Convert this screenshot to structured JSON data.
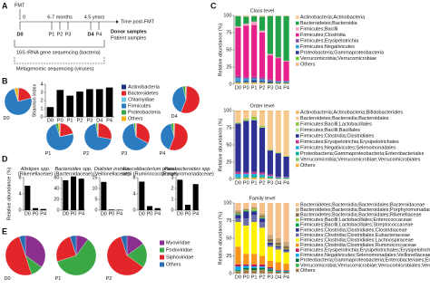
{
  "panel_labels": [
    "A",
    "B",
    "C",
    "D",
    "E"
  ],
  "panel_a": {
    "fmt": "FMT",
    "timepoints": [
      "0",
      "6-7 months",
      "4.5 years"
    ],
    "axis_label": "Time post-FMT",
    "donor_labels": [
      "D0",
      "D4"
    ],
    "patient_labels": [
      "P1",
      "P2",
      "P3",
      "P4"
    ],
    "legend": [
      "Donor samples",
      "Patient samples"
    ],
    "methods": [
      "16S rRNA gene sequencing (bacteria)",
      "Metagenomic sequencing (viruses)"
    ]
  },
  "chart_data": [
    {
      "type": "bar",
      "y_label": "Shannon index",
      "categories": [
        "D0",
        "P0",
        "P1",
        "P2",
        "P3",
        "D4",
        "P4"
      ],
      "values": [
        1.2,
        3.3,
        2.6,
        3.1,
        3.4,
        3.4,
        3.6
      ],
      "color": "#000000",
      "ylim": [
        0,
        4
      ],
      "yticks": [
        0,
        1,
        2,
        3,
        4
      ]
    },
    {
      "type": "pie",
      "categories": [
        "Actinobacteria",
        "Bacteroidetes",
        "Chlamydiae",
        "Firmicutes",
        "Proteobacteria",
        "Others"
      ],
      "colors": [
        "#1b2f7f",
        "#e3262a",
        "#6ac1e6",
        "#2b7bc0",
        "#3aa845",
        "#f7b21b"
      ],
      "pies": [
        {
          "label": "D0",
          "values": [
            1,
            20,
            0,
            74,
            1,
            4
          ]
        },
        {
          "label": "D4",
          "values": [
            1,
            55,
            0,
            40,
            3,
            1
          ]
        },
        {
          "label": "P1",
          "values": [
            1,
            20,
            1,
            73,
            3,
            2
          ]
        },
        {
          "label": "P2",
          "values": [
            1,
            27,
            0,
            69,
            2,
            1
          ]
        },
        {
          "label": "P3",
          "values": [
            1,
            32,
            0,
            64,
            2,
            1
          ]
        },
        {
          "label": "P4",
          "values": [
            1,
            55,
            0,
            40,
            3,
            1
          ]
        }
      ]
    },
    {
      "type": "stacked",
      "title": "Class level",
      "y_label": "Relative abundance (%)",
      "categories": [
        "D0",
        "P0",
        "P1",
        "P2",
        "P3",
        "D4",
        "P4"
      ],
      "ylim": [
        0,
        100
      ],
      "yticks": [
        0,
        25,
        50,
        75,
        100
      ],
      "series": [
        {
          "name": "Actinobacteria;Actinobacteria",
          "color": "#f6c79a",
          "values": [
            1,
            2,
            1,
            2,
            1,
            1,
            1
          ]
        },
        {
          "name": "Bacteroidetes;Bacteroidia",
          "color": "#22a34a",
          "values": [
            15,
            10,
            8,
            20,
            55,
            60,
            65
          ]
        },
        {
          "name": "Firmicutes;Bacilli",
          "color": "#f4a3c0",
          "values": [
            2,
            3,
            5,
            3,
            2,
            1,
            1
          ]
        },
        {
          "name": "Firmicutes;Clostridia",
          "color": "#e7218b",
          "values": [
            70,
            75,
            75,
            65,
            35,
            33,
            28
          ]
        },
        {
          "name": "Firmicutes;Erysipelotrichia",
          "color": "#8b4b9c",
          "values": [
            3,
            2,
            3,
            3,
            2,
            1,
            1
          ]
        },
        {
          "name": "Firmicutes;Negativicutes",
          "color": "#36a0d8",
          "values": [
            5,
            3,
            2,
            2,
            1,
            1,
            1
          ]
        },
        {
          "name": "Proteobacteria;Gammaproteobacteria",
          "color": "#2b3990",
          "values": [
            1,
            2,
            3,
            2,
            2,
            1,
            1
          ]
        },
        {
          "name": "Verrucomicrobia;Verrucomicrobiae",
          "color": "#66cc33",
          "values": [
            1,
            1,
            1,
            1,
            1,
            1,
            1
          ]
        },
        {
          "name": "Others",
          "color": "#f8b88b",
          "values": [
            2,
            2,
            2,
            2,
            1,
            1,
            1
          ]
        }
      ]
    },
    {
      "type": "stacked",
      "title": "Order level",
      "y_label": "Relative abundance (%)",
      "categories": [
        "D0",
        "P0",
        "P1",
        "P2",
        "P3",
        "D4",
        "P4"
      ],
      "ylim": [
        0,
        100
      ],
      "yticks": [
        0,
        25,
        50,
        75,
        100
      ],
      "series": [
        {
          "name": "Actinobacteria;Actinobacteria;Bifidobacteriales",
          "color": "#f1b36b",
          "values": [
            2,
            2,
            1,
            2,
            1,
            1,
            1
          ]
        },
        {
          "name": "Bacteroidetes;Bacteroidia;Bacteroidales",
          "color": "#f6c98e",
          "values": [
            15,
            10,
            8,
            20,
            55,
            60,
            65
          ]
        },
        {
          "name": "Firmicutes;Bacilli;Lactobacillales",
          "color": "#8dc63f",
          "values": [
            1,
            2,
            4,
            2,
            1,
            1,
            1
          ]
        },
        {
          "name": "Firmicutes;Bacilli;Bacillales",
          "color": "#b2df8a",
          "values": [
            1,
            1,
            1,
            1,
            1,
            0,
            0
          ]
        },
        {
          "name": "Firmicutes;Clostridia;Clostridiales",
          "color": "#2e3192",
          "values": [
            70,
            75,
            75,
            65,
            35,
            34,
            29
          ]
        },
        {
          "name": "Firmicutes;Erysipelotrichia;Erysipelotrichales",
          "color": "#c03a8e",
          "values": [
            3,
            2,
            3,
            3,
            2,
            1,
            1
          ]
        },
        {
          "name": "Firmicutes;Negativicutes;Selenomonadales",
          "color": "#29abe2",
          "values": [
            5,
            3,
            2,
            2,
            1,
            1,
            1
          ]
        },
        {
          "name": "Proteobacteria;Gammaproteobacteria;Enterobacteriales",
          "color": "#00a99d",
          "values": [
            1,
            2,
            3,
            2,
            2,
            1,
            1
          ]
        },
        {
          "name": "Verrucomicrobia;Verrucomicrobiae;Verrucomicrobiales",
          "color": "#7cc576",
          "values": [
            1,
            1,
            1,
            1,
            1,
            0,
            0
          ]
        },
        {
          "name": "Others",
          "color": "#fbb040",
          "values": [
            1,
            2,
            2,
            2,
            1,
            1,
            1
          ]
        }
      ]
    },
    {
      "type": "stacked",
      "title": "Family level",
      "y_label": "Relative abundance (%)",
      "categories": [
        "D0",
        "P0",
        "P1",
        "P2",
        "P3",
        "D4",
        "P4"
      ],
      "ylim": [
        0,
        100
      ],
      "yticks": [
        0,
        25,
        50,
        75,
        100
      ],
      "series": [
        {
          "name": "Bacteroidetes;Bacteroidia;Bacteroidales;Bacteroidaceae",
          "color": "#f5c08a",
          "values": [
            10,
            8,
            6,
            15,
            45,
            50,
            55
          ]
        },
        {
          "name": "Bacteroidetes;Bacteroidia;Bacteroidales;Porphyromonadaceae",
          "color": "#c7a77b",
          "values": [
            3,
            1,
            1,
            3,
            6,
            6,
            6
          ]
        },
        {
          "name": "Bacteroidetes;Bacteroidia;Bacteroidales;Rikenellaceae",
          "color": "#8c6d46",
          "values": [
            2,
            1,
            1,
            2,
            4,
            4,
            4
          ]
        },
        {
          "name": "Firmicutes;Bacilli;Lactobacillales;Enterococcaceae",
          "color": "#9ccb3b",
          "values": [
            1,
            1,
            3,
            1,
            1,
            1,
            1
          ]
        },
        {
          "name": "Firmicutes;Bacilli;Lactobacillales;Streptococcaceae",
          "color": "#00a651",
          "values": [
            1,
            1,
            1,
            1,
            0,
            0,
            0
          ]
        },
        {
          "name": "Firmicutes;Clostridia;Clostridiales;Clostridiaceae",
          "color": "#2e3192",
          "values": [
            5,
            10,
            5,
            5,
            3,
            2,
            2
          ]
        },
        {
          "name": "Firmicutes;Clostridia;Clostridiales;Eubacteriaceae",
          "color": "#6d6ea8",
          "values": [
            5,
            10,
            10,
            8,
            3,
            3,
            2
          ]
        },
        {
          "name": "Firmicutes;Clostridia;Clostridiales;Lachnospiraceae",
          "color": "#fff200",
          "values": [
            35,
            40,
            45,
            40,
            20,
            18,
            16
          ]
        },
        {
          "name": "Firmicutes;Clostridia;Clostridiales;Ruminococcaceae",
          "color": "#f7941d",
          "values": [
            25,
            15,
            15,
            12,
            9,
            11,
            9
          ]
        },
        {
          "name": "Firmicutes;Erysipelotrichia;Erysipelotrichales;Erysipelotrichaceae",
          "color": "#c2185b",
          "values": [
            3,
            2,
            3,
            3,
            2,
            1,
            1
          ]
        },
        {
          "name": "Firmicutes;Negativicutes;Selenomonadales;Veillonellaceae",
          "color": "#00aeef",
          "values": [
            5,
            3,
            2,
            2,
            1,
            1,
            1
          ]
        },
        {
          "name": "Proteobacteria;Gammaproteobacteria;Enterobacteriales;Enterobacteriaceae",
          "color": "#006838",
          "values": [
            1,
            2,
            3,
            2,
            2,
            1,
            1
          ]
        },
        {
          "name": "Verrucomicrobia;Verrucomicrobiae;Verrucomicrobiales;Verrucomicrobiaceae",
          "color": "#39b54a",
          "values": [
            1,
            1,
            1,
            1,
            1,
            0,
            0
          ]
        },
        {
          "name": "Others",
          "color": "#a67c52",
          "values": [
            3,
            5,
            4,
            5,
            3,
            2,
            2
          ]
        }
      ]
    },
    {
      "type": "bar",
      "y_label": "Relative abundance (%)",
      "title": [
        "Alistipes spp.",
        "(Rikenellaceae)"
      ],
      "categories": [
        "D0",
        "P0",
        "P4"
      ],
      "values": [
        6,
        0.5,
        0.3
      ],
      "color": "#000000",
      "ylim": [
        0,
        8
      ],
      "yticks": [
        0,
        4,
        8
      ]
    },
    {
      "type": "bar",
      "title": [
        "Bacteroides spp.",
        "(Bacteroidaceae)"
      ],
      "categories": [
        "D0",
        "P0",
        "P4"
      ],
      "values": [
        55,
        62,
        58
      ],
      "color": "#000000",
      "ylim": [
        0,
        60
      ],
      "yticks": [
        0,
        20,
        40,
        60
      ]
    },
    {
      "type": "bar",
      "title": [
        "Dialister invisus",
        "(Veillonellaceae)"
      ],
      "categories": [
        "D0",
        "P0",
        "P4"
      ],
      "values": [
        13,
        0.3,
        0.2
      ],
      "color": "#000000",
      "ylim": [
        0,
        15
      ],
      "yticks": [
        0,
        5,
        10,
        15
      ]
    },
    {
      "type": "bar",
      "title": [
        "Faecalibacterium praus-",
        "nitzii (Ruminococcaceae)"
      ],
      "categories": [
        "D0",
        "P0",
        "P4"
      ],
      "values": [
        7,
        1,
        0.5
      ],
      "color": "#000000",
      "ylim": [
        0,
        8
      ],
      "yticks": [
        0,
        4,
        8
      ]
    },
    {
      "type": "bar",
      "title": [
        "Parabacteroides spp.",
        "(Porphyromonadaceae)"
      ],
      "categories": [
        "D0",
        "P0",
        "P4"
      ],
      "values": [
        2.8,
        0.5,
        2.4
      ],
      "color": "#000000",
      "ylim": [
        0,
        3
      ],
      "yticks": [
        0,
        1,
        2,
        3
      ]
    },
    {
      "type": "pie",
      "categories": [
        "Myoviridae",
        "Podoviridae",
        "Siphoviridae",
        "Others"
      ],
      "colors": [
        "#8b2f8f",
        "#3aa845",
        "#e3262a",
        "#2b6cb0"
      ],
      "pies": [
        {
          "label": "D0",
          "values": [
            35,
            10,
            50,
            5
          ]
        },
        {
          "label": "P1",
          "values": [
            10,
            60,
            25,
            5
          ]
        },
        {
          "label": "P2",
          "values": [
            15,
            20,
            60,
            5
          ]
        }
      ]
    }
  ]
}
